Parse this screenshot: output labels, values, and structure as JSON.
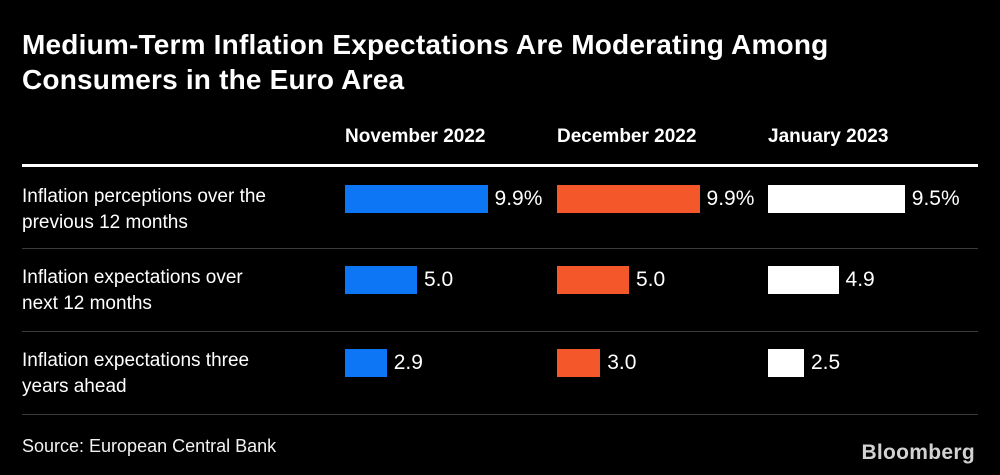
{
  "title": "Medium-Term Inflation Expectations Are Moderating Among\nConsumers in the Euro Area",
  "columns": [
    "November 2022",
    "December 2022",
    "January 2023"
  ],
  "rows": [
    {
      "label": "Inflation perceptions over the\nprevious 12 months",
      "display": [
        "9.9%",
        "9.9%",
        "9.5%"
      ]
    },
    {
      "label": "Inflation expectations over\nnext 12 months",
      "display": [
        "5.0",
        "5.0",
        "4.9"
      ]
    },
    {
      "label": "Inflation expectations three\nyears ahead",
      "display": [
        "2.9",
        "3.0",
        "2.5"
      ]
    }
  ],
  "source": "Source: European Central Bank",
  "brand": "Bloomberg",
  "colors": {
    "background": "#000000",
    "november_blue": "#0D76F5",
    "december_orange": "#F4582A",
    "january_white": "#FFFFFF",
    "separator": "#3B3B3B",
    "header_rule": "#FFFFFF"
  },
  "chart_data": {
    "type": "bar",
    "orientation": "horizontal",
    "title": "Medium-Term Inflation Expectations Are Moderating Among Consumers in the Euro Area",
    "categories": [
      "Inflation perceptions over the previous 12 months",
      "Inflation expectations over next 12 months",
      "Inflation expectations three years ahead"
    ],
    "series": [
      {
        "name": "November 2022",
        "color": "#0D76F5",
        "values": [
          9.9,
          5.0,
          2.9
        ]
      },
      {
        "name": "December 2022",
        "color": "#F4582A",
        "values": [
          9.9,
          5.0,
          3.0
        ]
      },
      {
        "name": "January 2023",
        "color": "#FFFFFF",
        "values": [
          9.5,
          4.9,
          2.5
        ]
      }
    ],
    "value_labels": [
      [
        "9.9%",
        "9.9%",
        "9.5%"
      ],
      [
        "5.0",
        "5.0",
        "4.9"
      ],
      [
        "2.9",
        "3.0",
        "2.5"
      ]
    ],
    "xlim": [
      0,
      10
    ],
    "grid": false,
    "legend_position": "top-as-column-headers",
    "source": "European Central Bank"
  }
}
